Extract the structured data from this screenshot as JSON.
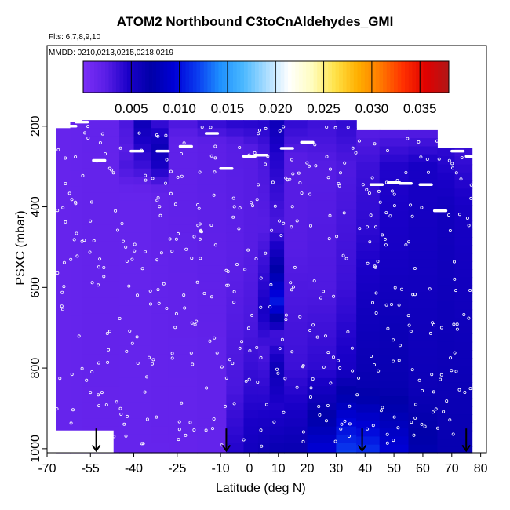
{
  "title": "ATOM2 Northbound C3toCnAldehydes_GMI",
  "flights_note": "Flts: 6,7,8,9,10",
  "dates_note": "MMDD: 0210,0213,0215,0218,0219",
  "chart_data": {
    "type": "heatmap",
    "xlabel": "Latitude (deg N)",
    "ylabel": "PSXC (mbar)",
    "xlim": [
      -70,
      82
    ],
    "ylim": [
      1010,
      0
    ],
    "x_ticks": [
      -70,
      -55,
      -40,
      -25,
      -10,
      0,
      10,
      20,
      30,
      40,
      50,
      60,
      70,
      80
    ],
    "x_tick_labels": [
      "-70",
      "-55",
      "-40",
      "-25",
      "-10",
      "0",
      "10",
      "20",
      "30",
      "40",
      "50",
      "60",
      "70",
      "80"
    ],
    "y_ticks": [
      200,
      400,
      600,
      800,
      1000
    ],
    "y_tick_labels": [
      "200",
      "400",
      "600",
      "800",
      "1000"
    ],
    "colorbar": {
      "min": 0.0,
      "max": 0.038,
      "ticks": [
        0.005,
        0.01,
        0.015,
        0.02,
        0.025,
        0.03,
        0.035
      ],
      "tick_labels": [
        "0.005",
        "0.010",
        "0.015",
        "0.020",
        "0.025",
        "0.030",
        "0.035"
      ],
      "colors": [
        "#7b2ff7",
        "#5a1ee6",
        "#1a00c8",
        "#0000a8",
        "#0000d8",
        "#0a3cf0",
        "#1e90ff",
        "#4ab8ff",
        "#a8dcff",
        "#ffffff",
        "#fffdc0",
        "#ffe34a",
        "#ffb000",
        "#ff7a00",
        "#ff3000",
        "#e00000",
        "#b01818"
      ]
    },
    "profile_arrows_lat": [
      -53,
      -8,
      39,
      75
    ],
    "columns": [
      {
        "lat0": -67,
        "lat1": -62,
        "top": 205,
        "values": [
          [
            205,
            0.0015
          ],
          [
            1010,
            0.0015
          ]
        ]
      },
      {
        "lat0": -62,
        "lat1": -58,
        "top": 190,
        "values": [
          [
            190,
            0.0016
          ],
          [
            1010,
            0.0016
          ]
        ]
      },
      {
        "lat0": -58,
        "lat1": -45,
        "top": 185,
        "values": [
          [
            185,
            0.0017
          ],
          [
            1010,
            0.0016
          ]
        ]
      },
      {
        "lat0": -45,
        "lat1": -40,
        "top": 185,
        "values": [
          [
            185,
            0.003
          ],
          [
            260,
            0.0025
          ],
          [
            300,
            0.003
          ],
          [
            360,
            0.0016
          ],
          [
            1010,
            0.0016
          ]
        ]
      },
      {
        "lat0": -40,
        "lat1": -34,
        "top": 185,
        "values": [
          [
            185,
            0.006
          ],
          [
            250,
            0.0045
          ],
          [
            300,
            0.0035
          ],
          [
            360,
            0.0016
          ],
          [
            1010,
            0.0016
          ]
        ]
      },
      {
        "lat0": -34,
        "lat1": -28,
        "top": 185,
        "values": [
          [
            185,
            0.0035
          ],
          [
            250,
            0.006
          ],
          [
            300,
            0.005
          ],
          [
            360,
            0.0018
          ],
          [
            1010,
            0.0016
          ]
        ]
      },
      {
        "lat0": -28,
        "lat1": -18,
        "top": 185,
        "values": [
          [
            185,
            0.003
          ],
          [
            240,
            0.002
          ],
          [
            1010,
            0.0016
          ]
        ]
      },
      {
        "lat0": -18,
        "lat1": -8,
        "top": 185,
        "values": [
          [
            185,
            0.004
          ],
          [
            240,
            0.0022
          ],
          [
            1010,
            0.0017
          ]
        ]
      },
      {
        "lat0": -8,
        "lat1": -2,
        "top": 185,
        "values": [
          [
            185,
            0.0045
          ],
          [
            240,
            0.0025
          ],
          [
            500,
            0.0022
          ],
          [
            850,
            0.003
          ],
          [
            1010,
            0.0045
          ]
        ]
      },
      {
        "lat0": -2,
        "lat1": 3,
        "top": 185,
        "values": [
          [
            185,
            0.0045
          ],
          [
            260,
            0.0025
          ],
          [
            500,
            0.0025
          ],
          [
            700,
            0.003
          ],
          [
            850,
            0.004
          ],
          [
            1010,
            0.0055
          ]
        ]
      },
      {
        "lat0": 3,
        "lat1": 7,
        "top": 185,
        "values": [
          [
            185,
            0.0045
          ],
          [
            270,
            0.003
          ],
          [
            450,
            0.0025
          ],
          [
            660,
            0.005
          ],
          [
            760,
            0.003
          ],
          [
            900,
            0.0045
          ],
          [
            1010,
            0.006
          ]
        ]
      },
      {
        "lat0": 7,
        "lat1": 12,
        "top": 185,
        "values": [
          [
            185,
            0.006
          ],
          [
            270,
            0.0045
          ],
          [
            450,
            0.003
          ],
          [
            640,
            0.0105
          ],
          [
            720,
            0.003
          ],
          [
            800,
            0.006
          ],
          [
            900,
            0.0045
          ],
          [
            1010,
            0.0065
          ]
        ]
      },
      {
        "lat0": 12,
        "lat1": 20,
        "top": 185,
        "values": [
          [
            185,
            0.004
          ],
          [
            270,
            0.0025
          ],
          [
            500,
            0.0025
          ],
          [
            800,
            0.0035
          ],
          [
            1010,
            0.0065
          ]
        ]
      },
      {
        "lat0": 20,
        "lat1": 30,
        "top": 185,
        "values": [
          [
            185,
            0.0035
          ],
          [
            300,
            0.0025
          ],
          [
            600,
            0.0028
          ],
          [
            800,
            0.004
          ],
          [
            900,
            0.0065
          ],
          [
            1010,
            0.0095
          ]
        ]
      },
      {
        "lat0": 30,
        "lat1": 37,
        "top": 185,
        "values": [
          [
            185,
            0.004
          ],
          [
            300,
            0.0028
          ],
          [
            600,
            0.0035
          ],
          [
            800,
            0.005
          ],
          [
            900,
            0.0085
          ],
          [
            1010,
            0.012
          ]
        ]
      },
      {
        "lat0": 37,
        "lat1": 45,
        "top": 210,
        "values": [
          [
            210,
            0.0025
          ],
          [
            300,
            0.0035
          ],
          [
            450,
            0.004
          ],
          [
            650,
            0.0055
          ],
          [
            850,
            0.0065
          ],
          [
            1010,
            0.0115
          ]
        ]
      },
      {
        "lat0": 45,
        "lat1": 55,
        "top": 210,
        "values": [
          [
            210,
            0.0025
          ],
          [
            300,
            0.0045
          ],
          [
            500,
            0.005
          ],
          [
            700,
            0.006
          ],
          [
            850,
            0.0065
          ],
          [
            1010,
            0.0095
          ]
        ]
      },
      {
        "lat0": 55,
        "lat1": 65,
        "top": 210,
        "values": [
          [
            210,
            0.0025
          ],
          [
            300,
            0.005
          ],
          [
            600,
            0.0055
          ],
          [
            850,
            0.006
          ],
          [
            1010,
            0.0075
          ]
        ]
      },
      {
        "lat0": 65,
        "lat1": 71,
        "top": 255,
        "values": [
          [
            255,
            0.004
          ],
          [
            400,
            0.0055
          ],
          [
            800,
            0.006
          ],
          [
            1010,
            0.0065
          ]
        ]
      },
      {
        "lat0": 71,
        "lat1": 77,
        "top": 255,
        "values": [
          [
            255,
            0.0035
          ],
          [
            400,
            0.005
          ],
          [
            800,
            0.006
          ],
          [
            1010,
            0.0065
          ]
        ]
      }
    ],
    "flight_tracks": [
      {
        "lat": -62,
        "p": 200
      },
      {
        "lat": -58,
        "p": 190
      },
      {
        "lat": -52,
        "p": 285
      },
      {
        "lat": -39,
        "p": 262
      },
      {
        "lat": -30,
        "p": 262
      },
      {
        "lat": -22,
        "p": 250
      },
      {
        "lat": -13,
        "p": 218
      },
      {
        "lat": -8,
        "p": 305
      },
      {
        "lat": 0,
        "p": 275
      },
      {
        "lat": 4,
        "p": 272
      },
      {
        "lat": 13,
        "p": 255
      },
      {
        "lat": 20,
        "p": 240
      },
      {
        "lat": 44,
        "p": 345
      },
      {
        "lat": 50,
        "p": 340
      },
      {
        "lat": 54,
        "p": 342
      },
      {
        "lat": 61,
        "p": 345
      },
      {
        "lat": 66,
        "p": 410
      },
      {
        "lat": 72,
        "p": 262
      },
      {
        "lat": 77,
        "p": 275
      }
    ]
  }
}
